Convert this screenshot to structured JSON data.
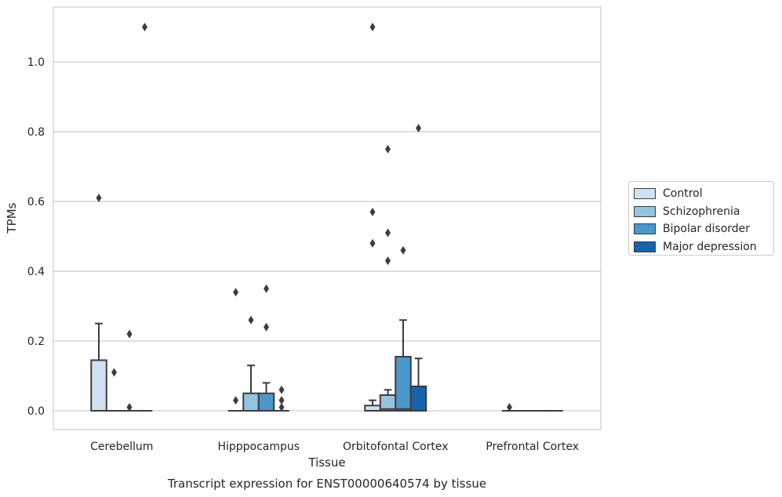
{
  "chart_data": {
    "type": "box",
    "title": "Transcript expression for ENST00000640574 by tissue",
    "xlabel": "Tissue",
    "ylabel": "TPMs",
    "ylim": [
      -0.05,
      1.16
    ],
    "yticks": [
      "0.0",
      "0.2",
      "0.4",
      "0.6",
      "0.8",
      "1.0"
    ],
    "grid": "horizontal",
    "legend_position": "right",
    "categories": [
      "Cerebellum",
      "Hipppocampus",
      "Orbitofontal Cortex",
      "Prefrontal Cortex"
    ],
    "series": [
      {
        "name": "Control",
        "color": "#d0e1f2",
        "boxes": [
          {
            "q1": 0.0,
            "median": 0.0,
            "q3": 0.145,
            "whisker_low": 0.0,
            "whisker_high": 0.25,
            "outliers": [
              0.61
            ]
          },
          {
            "q1": 0.0,
            "median": 0.0,
            "q3": 0.0,
            "whisker_low": 0.0,
            "whisker_high": 0.0,
            "outliers": [
              0.34,
              0.03
            ]
          },
          {
            "q1": 0.0,
            "median": 0.0,
            "q3": 0.015,
            "whisker_low": 0.0,
            "whisker_high": 0.03,
            "outliers": [
              1.1,
              0.57,
              0.48
            ]
          },
          {
            "q1": 0.0,
            "median": 0.0,
            "q3": 0.0,
            "whisker_low": 0.0,
            "whisker_high": 0.0,
            "outliers": [
              0.01
            ]
          }
        ]
      },
      {
        "name": "Schizophrenia",
        "color": "#94c4df",
        "boxes": [
          {
            "q1": 0.0,
            "median": 0.0,
            "q3": 0.0,
            "whisker_low": 0.0,
            "whisker_high": 0.0,
            "outliers": [
              0.11
            ]
          },
          {
            "q1": 0.0,
            "median": 0.0,
            "q3": 0.05,
            "whisker_low": 0.0,
            "whisker_high": 0.13,
            "outliers": [
              0.26
            ]
          },
          {
            "q1": 0.0,
            "median": 0.005,
            "q3": 0.045,
            "whisker_low": 0.0,
            "whisker_high": 0.06,
            "outliers": [
              0.75,
              0.51,
              0.43
            ]
          },
          {
            "q1": 0.0,
            "median": 0.0,
            "q3": 0.0,
            "whisker_low": 0.0,
            "whisker_high": 0.0,
            "outliers": []
          }
        ]
      },
      {
        "name": "Bipolar disorder",
        "color": "#4a98c9",
        "boxes": [
          {
            "q1": 0.0,
            "median": 0.0,
            "q3": 0.0,
            "whisker_low": 0.0,
            "whisker_high": 0.0,
            "outliers": [
              0.22,
              0.01
            ]
          },
          {
            "q1": 0.0,
            "median": 0.0,
            "q3": 0.05,
            "whisker_low": 0.0,
            "whisker_high": 0.08,
            "outliers": [
              0.35,
              0.24
            ]
          },
          {
            "q1": 0.0,
            "median": 0.005,
            "q3": 0.155,
            "whisker_low": 0.0,
            "whisker_high": 0.26,
            "outliers": [
              0.46
            ]
          },
          {
            "q1": 0.0,
            "median": 0.0,
            "q3": 0.0,
            "whisker_low": 0.0,
            "whisker_high": 0.0,
            "outliers": []
          }
        ]
      },
      {
        "name": "Major depression",
        "color": "#1764ab",
        "boxes": [
          {
            "q1": 0.0,
            "median": 0.0,
            "q3": 0.0,
            "whisker_low": 0.0,
            "whisker_high": 0.0,
            "outliers": [
              1.1
            ]
          },
          {
            "q1": 0.0,
            "median": 0.0,
            "q3": 0.0,
            "whisker_low": 0.0,
            "whisker_high": 0.0,
            "outliers": [
              0.06,
              0.03,
              0.01
            ]
          },
          {
            "q1": 0.0,
            "median": 0.0,
            "q3": 0.07,
            "whisker_low": 0.0,
            "whisker_high": 0.15,
            "outliers": [
              0.81
            ]
          },
          {
            "q1": 0.0,
            "median": 0.0,
            "q3": 0.0,
            "whisker_low": 0.0,
            "whisker_high": 0.0,
            "outliers": []
          }
        ]
      }
    ]
  }
}
